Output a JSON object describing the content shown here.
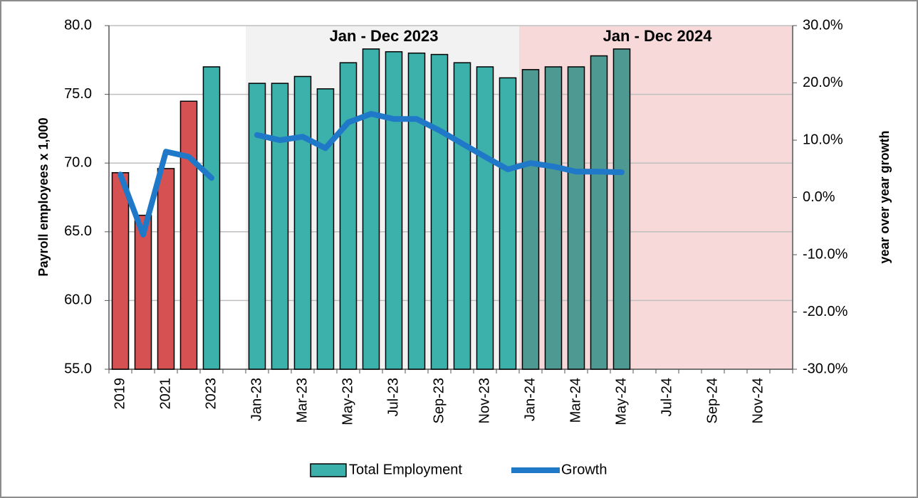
{
  "chart_data": {
    "type": "bar_line",
    "y_label": "Payroll employees x 1,000",
    "y2_label": "year over year growth",
    "categories": [
      "2019",
      null,
      "2021",
      null,
      "2023",
      null,
      "Jan-23",
      null,
      "Mar-23",
      null,
      "May-23",
      null,
      "Jul-23",
      null,
      "Sep-23",
      null,
      "Nov-23",
      null,
      "Jan-24",
      null,
      "Mar-24",
      null,
      "May-24",
      null,
      "Jul-24",
      null,
      "Sep-24",
      null,
      "Nov-24",
      null
    ],
    "series": [
      {
        "name": "Total Employment",
        "type": "bar",
        "color": "#3cb0aa",
        "colors": [
          "#d65252",
          "#d65252",
          "#d65252",
          "#d65252",
          "#3cb0aa",
          null,
          "#3cb0aa",
          "#3cb0aa",
          "#3cb0aa",
          "#3cb0aa",
          "#3cb0aa",
          "#3cb0aa",
          "#3cb0aa",
          "#3cb0aa",
          "#3cb0aa",
          "#3cb0aa",
          "#3cb0aa",
          "#3cb0aa",
          "#4e9a92",
          "#4e9a92",
          "#4e9a92",
          "#4e9a92",
          "#4e9a92",
          null,
          null,
          null,
          null,
          null,
          null,
          null
        ],
        "values": [
          69.3,
          66.2,
          69.6,
          74.5,
          77.0,
          null,
          75.8,
          75.8,
          76.3,
          75.4,
          77.3,
          78.3,
          78.1,
          78.0,
          77.9,
          77.3,
          77.0,
          76.2,
          76.8,
          77.0,
          77.0,
          77.8,
          78.3,
          null,
          null,
          null,
          null,
          null,
          null,
          null
        ]
      },
      {
        "name": "Growth",
        "type": "line",
        "axis": "y2",
        "color": "#1f78c8",
        "values": [
          4.0,
          -6.5,
          8.0,
          7.1,
          3.4,
          null,
          10.9,
          10.0,
          10.6,
          8.6,
          13.1,
          14.6,
          13.7,
          13.7,
          11.7,
          9.4,
          7.1,
          4.9,
          6.0,
          5.4,
          4.5,
          4.5,
          4.4,
          null,
          null,
          null,
          null,
          null,
          null,
          null
        ]
      }
    ],
    "regions": [
      {
        "label": "Jan - Dec 2023",
        "start": 6,
        "end": 17,
        "color": "#f2f2f2"
      },
      {
        "label": "Jan - Dec 2024",
        "start": 18,
        "end": 29,
        "color": "#f7d9d9"
      }
    ],
    "ylim": [
      55,
      80
    ],
    "yticks": [
      {
        "value": 55,
        "label": "55.0"
      },
      {
        "value": 60,
        "label": "60.0"
      },
      {
        "value": 65,
        "label": "65.0"
      },
      {
        "value": 70,
        "label": "70.0"
      },
      {
        "value": 75,
        "label": "75.0"
      },
      {
        "value": 80,
        "label": "80.0"
      }
    ],
    "y2lim": [
      -30,
      30
    ],
    "y2ticks": [
      {
        "value": -30,
        "label": "-30.0%"
      },
      {
        "value": -20,
        "label": "-20.0%"
      },
      {
        "value": -10,
        "label": "-10.0%"
      },
      {
        "value": 0,
        "label": "0.0%"
      },
      {
        "value": 10,
        "label": "10.0%"
      },
      {
        "value": 20,
        "label": "20.0%"
      },
      {
        "value": 30,
        "label": "30.0%"
      }
    ],
    "grid": true,
    "legend": "bottom"
  }
}
